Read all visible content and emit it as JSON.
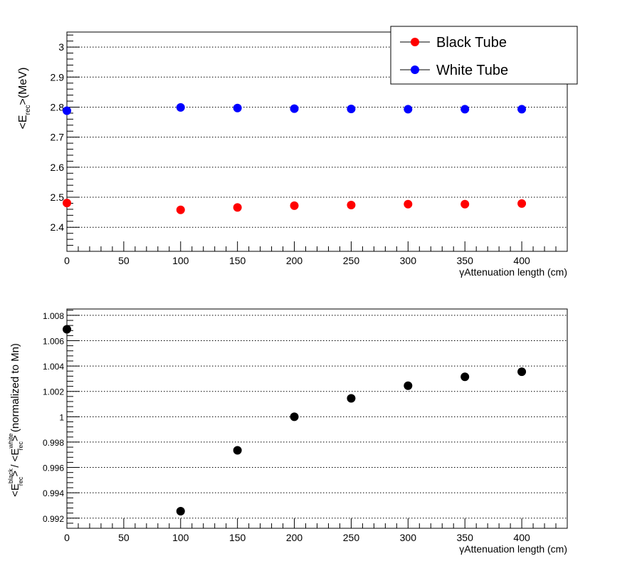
{
  "chart_data": [
    {
      "type": "scatter",
      "title": "",
      "xlabel": "γAttenuation length (cm)",
      "ylabel_parts": {
        "open": "<E",
        "sub": "rec",
        "close": ">(MeV)"
      },
      "xlim": [
        0,
        440
      ],
      "ylim": [
        2.32,
        3.05
      ],
      "xticks": [
        0,
        50,
        100,
        150,
        200,
        250,
        300,
        350,
        400
      ],
      "xtick_labels": [
        "0",
        "50",
        "100",
        "150",
        "200",
        "250",
        "300",
        "350",
        "400"
      ],
      "yticks": [
        2.4,
        2.5,
        2.6,
        2.7,
        2.8,
        2.9,
        3.0
      ],
      "ytick_labels": [
        "2.4",
        "2.5",
        "2.6",
        "2.7",
        "2.8",
        "2.9",
        "3"
      ],
      "grid_y": true,
      "legend_position": "top-right",
      "series": [
        {
          "name": "Black Tube",
          "color": "#ff0000",
          "x": [
            0,
            100,
            150,
            200,
            250,
            300,
            350,
            400
          ],
          "y": [
            2.481,
            2.458,
            2.466,
            2.472,
            2.474,
            2.477,
            2.477,
            2.479
          ]
        },
        {
          "name": "White Tube",
          "color": "#0000ff",
          "x": [
            0,
            100,
            150,
            200,
            250,
            300,
            350,
            400
          ],
          "y": [
            2.788,
            2.799,
            2.797,
            2.795,
            2.794,
            2.793,
            2.793,
            2.793
          ]
        }
      ]
    },
    {
      "type": "scatter",
      "title": "",
      "xlabel": "γAttenuation length (cm)",
      "ylabel_parts": {
        "open1": "<E",
        "sup1": "black",
        "sub1": "rec",
        "mid": "> / <E",
        "sup2": "white",
        "sub2": "rec",
        "close": "> (normalized to Mn)"
      },
      "xlim": [
        0,
        440
      ],
      "ylim": [
        0.9912,
        1.0085
      ],
      "xticks": [
        0,
        50,
        100,
        150,
        200,
        250,
        300,
        350,
        400
      ],
      "xtick_labels": [
        "0",
        "50",
        "100",
        "150",
        "200",
        "250",
        "300",
        "350",
        "400"
      ],
      "yticks": [
        0.992,
        0.994,
        0.996,
        0.998,
        1.0,
        1.002,
        1.004,
        1.006,
        1.008
      ],
      "ytick_labels": [
        "0.992",
        "0.994",
        "0.996",
        "0.998",
        "1",
        "1.002",
        "1.004",
        "1.006",
        "1.008"
      ],
      "grid_y": true,
      "series": [
        {
          "color": "#000000",
          "x": [
            0,
            100,
            150,
            200,
            250,
            300,
            350,
            400
          ],
          "y": [
            1.0069,
            0.99255,
            0.99735,
            1.0,
            1.00145,
            1.00245,
            1.00315,
            1.00355
          ]
        }
      ]
    }
  ]
}
